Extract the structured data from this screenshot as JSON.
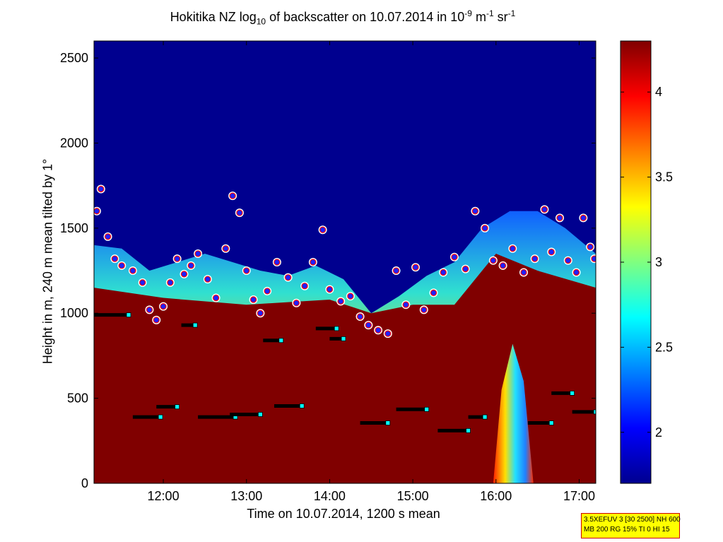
{
  "title": {
    "prefix": "Hokitika NZ log",
    "sub": "10",
    "middle": " of backscatter on 10.07.2014 in 10",
    "sup1": "-9",
    "unit1": " m",
    "sup2": "-1",
    "unit2": " sr",
    "sup3": "-1"
  },
  "xlabel": "Time on 10.07.2014, 1200 s mean",
  "ylabel": "Height in m, 240 m mean tilted by 1°",
  "infobox": {
    "line1": "3.5XEFUV 3 [30 2500] NH 600",
    "line2": "MB 200 RG 15% TI 0 HI 15"
  },
  "colors": {
    "background_low": "#00008f",
    "boundary_layer": "#800000",
    "cloud_marker_fill": "#2020ff",
    "cloud_marker_edge": "#ff0000",
    "layer_marker": "#00ffff"
  },
  "chart_data": {
    "type": "heatmap",
    "title": "Hokitika NZ log10 of backscatter on 10.07.2014 in 10^-9 m^-1 sr^-1",
    "xlabel": "Time on 10.07.2014, 1200 s mean",
    "ylabel": "Height in m, 240 m mean tilted by 1°",
    "xlim": [
      "11:10",
      "17:12"
    ],
    "ylim": [
      0,
      2600
    ],
    "x_ticks": [
      "12:00",
      "13:00",
      "14:00",
      "15:00",
      "16:00",
      "17:00"
    ],
    "y_ticks": [
      0,
      500,
      1000,
      1500,
      2000,
      2500
    ],
    "colorbar": {
      "range": [
        1.7,
        4.3
      ],
      "ticks": [
        2,
        2.5,
        3,
        3.5,
        4
      ],
      "tick_labels": [
        "2",
        "2.5",
        "3",
        "3.5",
        "4"
      ],
      "colormap": "jet"
    },
    "aerosol_layer_top": [
      {
        "time": "11:10",
        "height": 1400
      },
      {
        "time": "11:30",
        "height": 1380
      },
      {
        "time": "11:50",
        "height": 1250
      },
      {
        "time": "12:10",
        "height": 1300
      },
      {
        "time": "12:30",
        "height": 1350
      },
      {
        "time": "12:50",
        "height": 1300
      },
      {
        "time": "13:10",
        "height": 1250
      },
      {
        "time": "13:30",
        "height": 1220
      },
      {
        "time": "13:50",
        "height": 1280
      },
      {
        "time": "14:10",
        "height": 1200
      },
      {
        "time": "14:30",
        "height": 1000
      },
      {
        "time": "14:50",
        "height": 1100
      },
      {
        "time": "15:10",
        "height": 1220
      },
      {
        "time": "15:30",
        "height": 1300
      },
      {
        "time": "15:50",
        "height": 1500
      },
      {
        "time": "16:10",
        "height": 1600
      },
      {
        "time": "16:30",
        "height": 1600
      },
      {
        "time": "16:50",
        "height": 1500
      },
      {
        "time": "17:12",
        "height": 1350
      }
    ],
    "boundary_layer_top": [
      {
        "time": "11:10",
        "height": 1000
      },
      {
        "time": "12:00",
        "height": 940
      },
      {
        "time": "13:00",
        "height": 900
      },
      {
        "time": "14:00",
        "height": 930
      },
      {
        "time": "14:30",
        "height": 850
      },
      {
        "time": "15:00",
        "height": 900
      },
      {
        "time": "15:30",
        "height": 900
      },
      {
        "time": "16:00",
        "height": 1200
      },
      {
        "time": "16:30",
        "height": 1100
      },
      {
        "time": "17:12",
        "height": 1000
      }
    ],
    "layer_detections": [
      {
        "start": "11:10",
        "end": "11:35",
        "height": 990
      },
      {
        "start": "11:38",
        "end": "11:58",
        "height": 390
      },
      {
        "start": "11:55",
        "end": "12:10",
        "height": 450
      },
      {
        "start": "12:13",
        "end": "12:23",
        "height": 930
      },
      {
        "start": "12:25",
        "end": "12:52",
        "height": 390
      },
      {
        "start": "12:48",
        "end": "13:10",
        "height": 405
      },
      {
        "start": "13:12",
        "end": "13:25",
        "height": 840
      },
      {
        "start": "13:20",
        "end": "13:40",
        "height": 455
      },
      {
        "start": "13:50",
        "end": "14:05",
        "height": 910
      },
      {
        "start": "14:00",
        "end": "14:10",
        "height": 850
      },
      {
        "start": "14:22",
        "end": "14:42",
        "height": 355
      },
      {
        "start": "14:48",
        "end": "15:10",
        "height": 435
      },
      {
        "start": "15:18",
        "end": "15:40",
        "height": 310
      },
      {
        "start": "15:40",
        "end": "15:52",
        "height": 390
      },
      {
        "start": "16:23",
        "end": "16:40",
        "height": 355
      },
      {
        "start": "16:40",
        "end": "16:55",
        "height": 530
      },
      {
        "start": "16:55",
        "end": "17:12",
        "height": 420
      }
    ],
    "cloud_base_points": [
      {
        "time": "11:12",
        "height": 1600
      },
      {
        "time": "11:15",
        "height": 1730
      },
      {
        "time": "11:20",
        "height": 1450
      },
      {
        "time": "11:25",
        "height": 1320
      },
      {
        "time": "11:30",
        "height": 1280
      },
      {
        "time": "11:38",
        "height": 1250
      },
      {
        "time": "11:45",
        "height": 1180
      },
      {
        "time": "11:50",
        "height": 1020
      },
      {
        "time": "11:55",
        "height": 960
      },
      {
        "time": "12:00",
        "height": 1040
      },
      {
        "time": "12:05",
        "height": 1180
      },
      {
        "time": "12:10",
        "height": 1320
      },
      {
        "time": "12:15",
        "height": 1230
      },
      {
        "time": "12:20",
        "height": 1280
      },
      {
        "time": "12:25",
        "height": 1350
      },
      {
        "time": "12:32",
        "height": 1200
      },
      {
        "time": "12:38",
        "height": 1090
      },
      {
        "time": "12:45",
        "height": 1380
      },
      {
        "time": "12:50",
        "height": 1690
      },
      {
        "time": "12:55",
        "height": 1590
      },
      {
        "time": "13:00",
        "height": 1250
      },
      {
        "time": "13:05",
        "height": 1080
      },
      {
        "time": "13:10",
        "height": 1000
      },
      {
        "time": "13:15",
        "height": 1130
      },
      {
        "time": "13:22",
        "height": 1300
      },
      {
        "time": "13:30",
        "height": 1210
      },
      {
        "time": "13:36",
        "height": 1060
      },
      {
        "time": "13:42",
        "height": 1160
      },
      {
        "time": "13:48",
        "height": 1300
      },
      {
        "time": "13:55",
        "height": 1490
      },
      {
        "time": "14:00",
        "height": 1140
      },
      {
        "time": "14:08",
        "height": 1070
      },
      {
        "time": "14:15",
        "height": 1100
      },
      {
        "time": "14:22",
        "height": 980
      },
      {
        "time": "14:28",
        "height": 930
      },
      {
        "time": "14:35",
        "height": 900
      },
      {
        "time": "14:42",
        "height": 880
      },
      {
        "time": "14:48",
        "height": 1250
      },
      {
        "time": "14:55",
        "height": 1050
      },
      {
        "time": "15:02",
        "height": 1270
      },
      {
        "time": "15:08",
        "height": 1020
      },
      {
        "time": "15:15",
        "height": 1120
      },
      {
        "time": "15:22",
        "height": 1240
      },
      {
        "time": "15:30",
        "height": 1330
      },
      {
        "time": "15:38",
        "height": 1260
      },
      {
        "time": "15:45",
        "height": 1600
      },
      {
        "time": "15:52",
        "height": 1500
      },
      {
        "time": "15:58",
        "height": 1310
      },
      {
        "time": "16:05",
        "height": 1280
      },
      {
        "time": "16:12",
        "height": 1380
      },
      {
        "time": "16:20",
        "height": 1240
      },
      {
        "time": "16:28",
        "height": 1320
      },
      {
        "time": "16:35",
        "height": 1610
      },
      {
        "time": "16:40",
        "height": 1360
      },
      {
        "time": "16:46",
        "height": 1560
      },
      {
        "time": "16:52",
        "height": 1310
      },
      {
        "time": "16:58",
        "height": 1240
      },
      {
        "time": "17:03",
        "height": 1560
      },
      {
        "time": "17:08",
        "height": 1390
      },
      {
        "time": "17:11",
        "height": 1320
      }
    ]
  }
}
